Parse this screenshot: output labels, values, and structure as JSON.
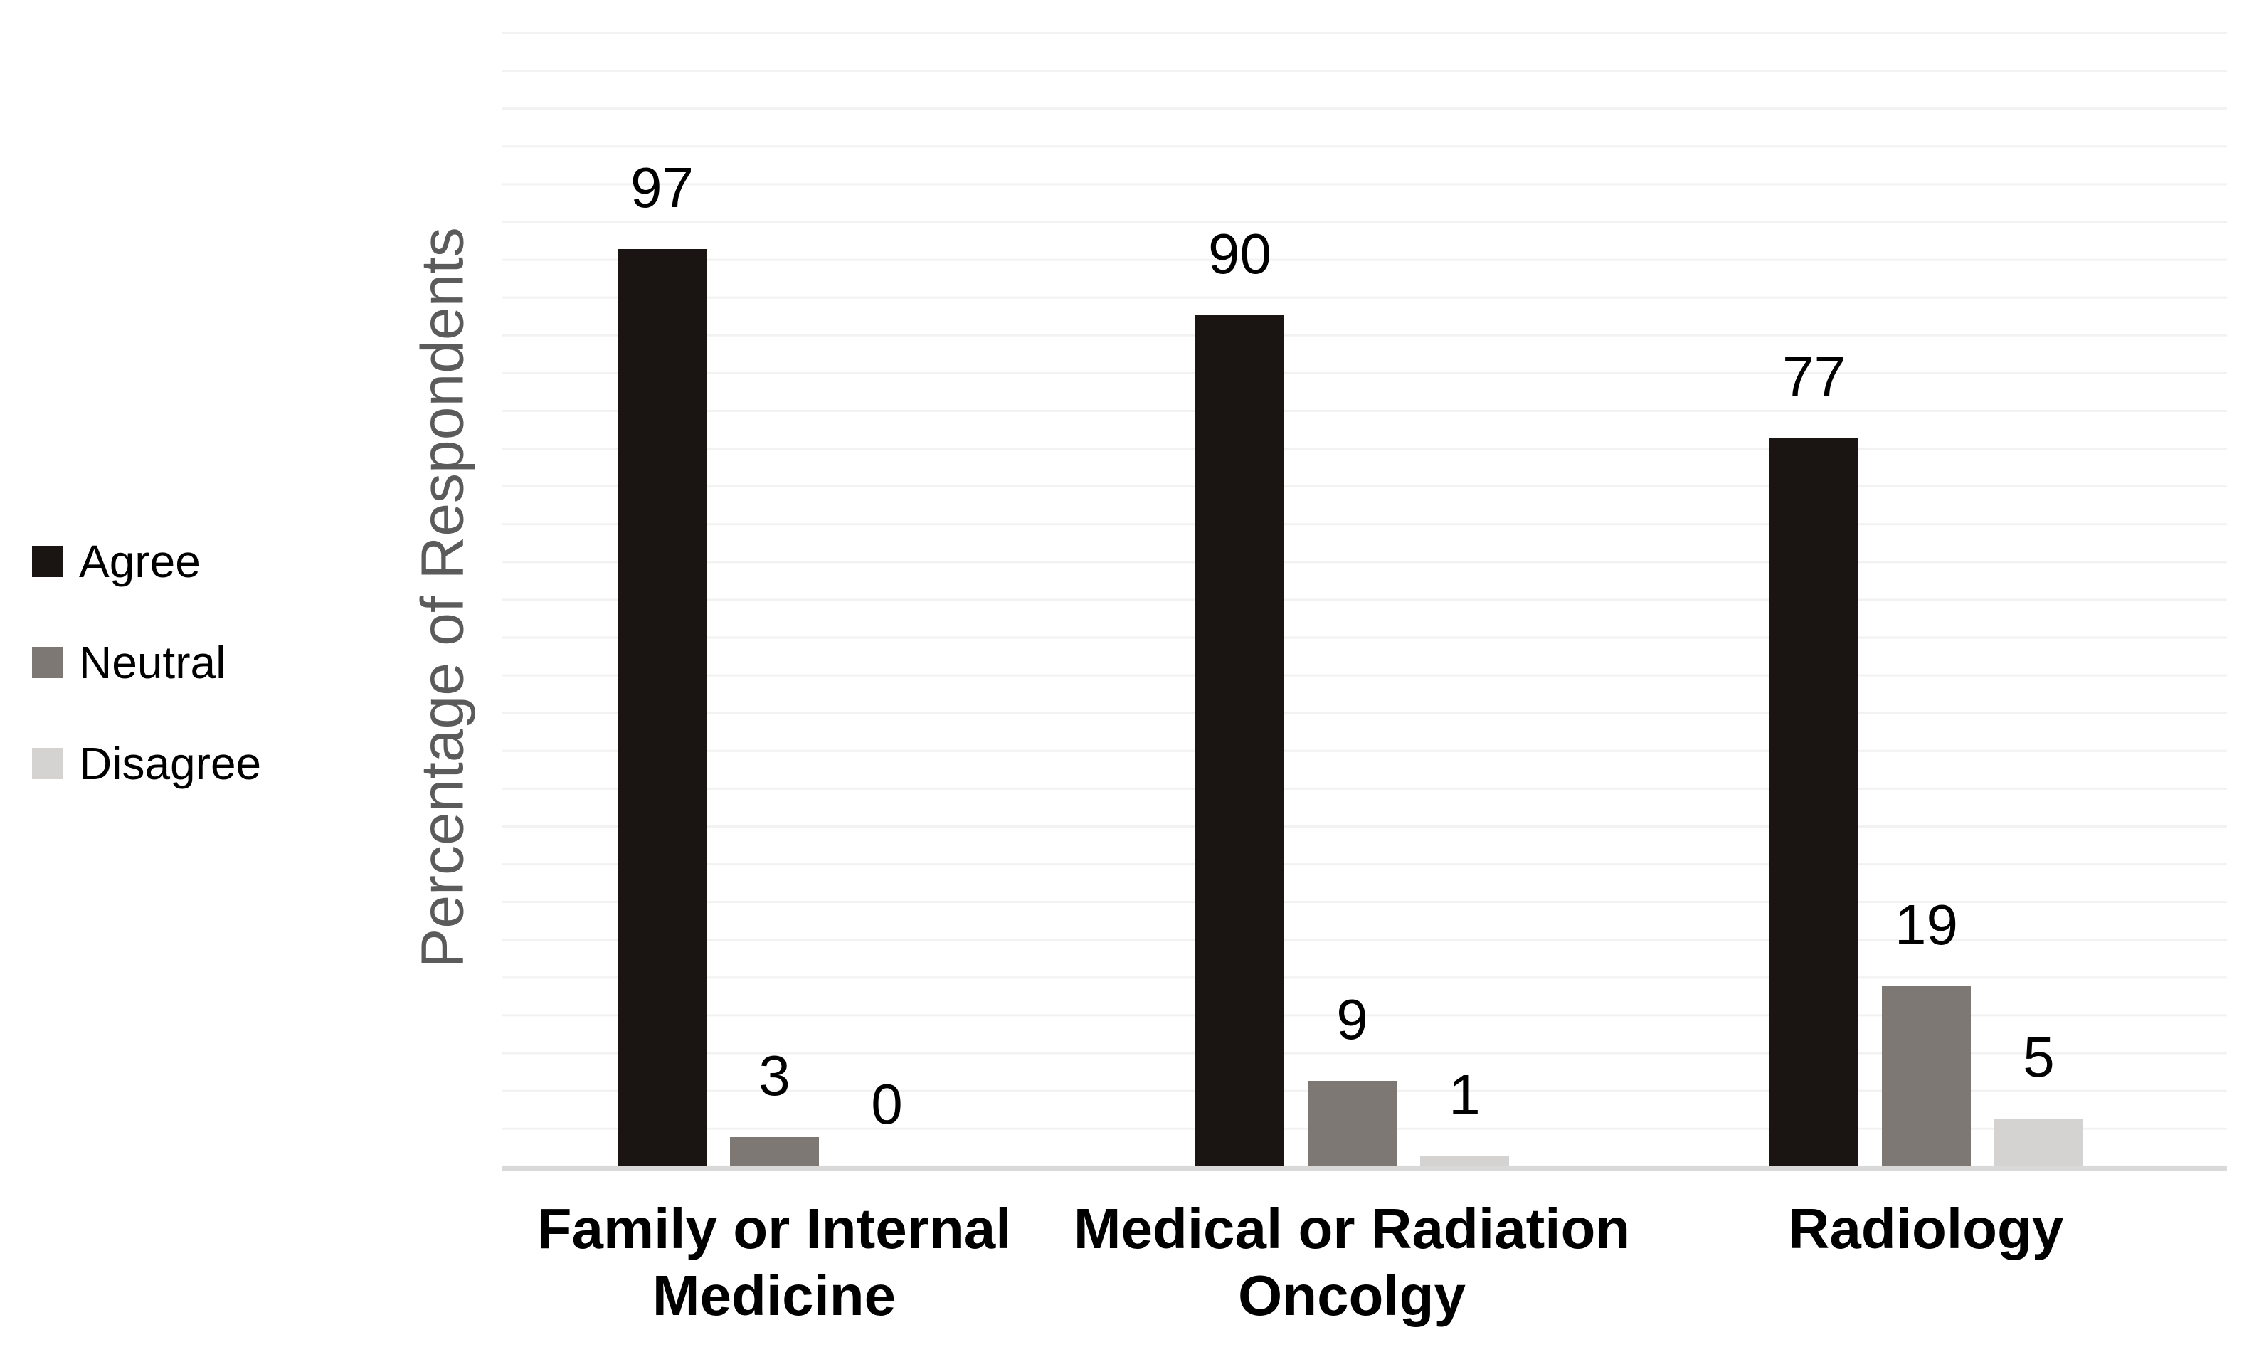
{
  "chart_data": {
    "type": "bar",
    "title": "",
    "xlabel": "",
    "ylabel": "Percentage of Respondents",
    "categories": [
      "Family or Internal Medicine",
      "Medical or Radiation Oncolgy",
      "Radiology"
    ],
    "category_label_lines": [
      [
        "Family or Internal",
        "Medicine"
      ],
      [
        "Medical or Radiation",
        "Oncolgy"
      ],
      [
        "Radiology"
      ]
    ],
    "series": [
      {
        "name": "Agree",
        "color": "#1a1513",
        "values": [
          97,
          90,
          77
        ]
      },
      {
        "name": "Neutral",
        "color": "#7e7874",
        "values": [
          3,
          9,
          19
        ]
      },
      {
        "name": "Disagree",
        "color": "#d4d3d1",
        "values": [
          0,
          1,
          5
        ]
      }
    ],
    "ylim": [
      0,
      120
    ],
    "y_tick_labels_visible": false,
    "data_labels": true,
    "grid": true,
    "gridline_color": "#f2f2f2",
    "axis_line_color": "#d9d9d9",
    "ylabel_color": "#5b5b5b",
    "legend_position": "left"
  }
}
